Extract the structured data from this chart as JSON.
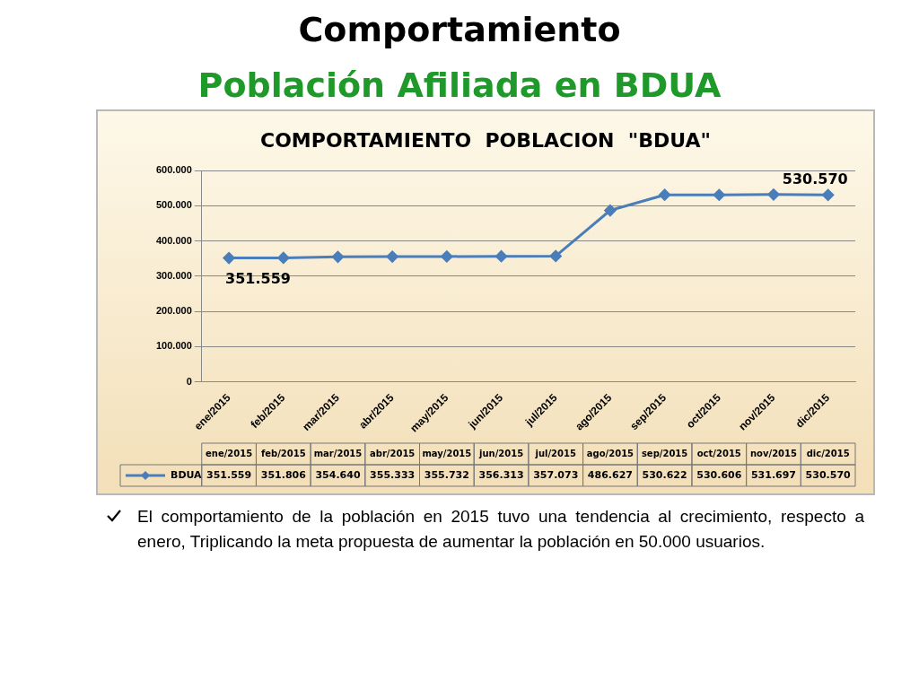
{
  "chart_data": {
    "type": "line",
    "title": "Comportamiento",
    "subtitle": "Población Afiliada en BDUA",
    "categories": [
      "ene/2015",
      "feb/2015",
      "mar/2015",
      "abr/2015",
      "may/2015",
      "jun/2015",
      "jul/2015",
      "ago/2015",
      "sep/2015",
      "oct/2015",
      "nov/2015",
      "dic/2015"
    ],
    "series": [
      {
        "name": "BDUA",
        "color": "#4a7ebb",
        "values": [
          351559,
          351806,
          354640,
          355333,
          355732,
          356313,
          357073,
          486627,
          530622,
          530606,
          531697,
          530570
        ],
        "value_labels": [
          "351.559",
          "351.806",
          "354.640",
          "355.333",
          "355.732",
          "356.313",
          "357.073",
          "486.627",
          "530.622",
          "530.606",
          "531.697",
          "530.570"
        ]
      }
    ],
    "ylim": [
      0,
      600000
    ],
    "yticks": [
      {
        "value": 0,
        "label": "0"
      },
      {
        "value": 100000,
        "label": "100.000"
      },
      {
        "value": 200000,
        "label": "200.000"
      },
      {
        "value": 300000,
        "label": "300.000"
      },
      {
        "value": 400000,
        "label": "400.000"
      },
      {
        "value": 500000,
        "label": "500.000"
      },
      {
        "value": 600000,
        "label": "600.000"
      }
    ],
    "grid": "y",
    "legend": "bottom",
    "marker": "diamond",
    "line_style": "solid",
    "annotations": [
      "COMPORTAMIENTO  POBLACION  \"BDUA\"",
      "El comportamiento de la población en 2015 tuvo una tendencia al crecimiento, respecto a enero, Triplicando la meta propuesta de aumentar la población en 50.000 usuarios.",
      "351.559",
      "530.570"
    ]
  }
}
